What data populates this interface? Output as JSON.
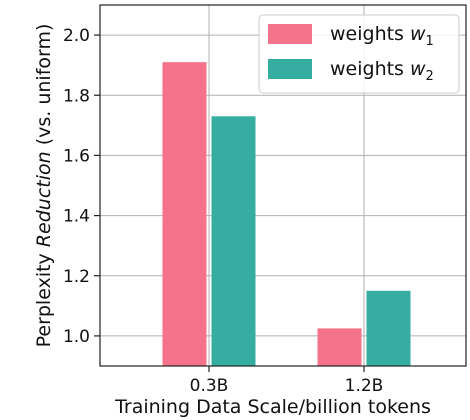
{
  "chart_data": {
    "type": "bar",
    "categories": [
      "0.3B",
      "1.2B"
    ],
    "series": [
      {
        "name": "weights",
        "name_var": "w",
        "name_sub": "1",
        "color": "#f4728a",
        "values": [
          1.91,
          1.025
        ]
      },
      {
        "name": "weights",
        "name_var": "w",
        "name_sub": "2",
        "color": "#35ada0",
        "values": [
          1.73,
          1.15
        ]
      }
    ],
    "xlabel": "Training Data Scale/billion tokens",
    "ylabel_prefix": "Perplexity ",
    "ylabel_italic": "Reduction",
    "ylabel_suffix": " (vs. uniform)",
    "ylim": [
      0.9,
      2.1
    ],
    "yticks": [
      1.0,
      1.2,
      1.4,
      1.6,
      1.8,
      2.0
    ],
    "ytick_labels": [
      "1.0",
      "1.2",
      "1.4",
      "1.6",
      "1.8",
      "2.0"
    ],
    "grid": true,
    "legend_position": "top-right"
  }
}
